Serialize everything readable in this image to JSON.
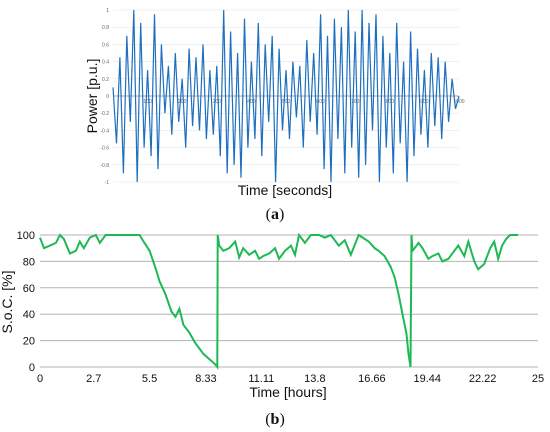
{
  "chart_data": [
    {
      "type": "line",
      "panel_label": "(a)",
      "caption_open": "(",
      "caption_letter": "a",
      "caption_close": ")",
      "xlabel": "Time [seconds]",
      "ylabel": "Power [p.u.]",
      "xlim": [
        0,
        1000
      ],
      "ylim": [
        -1,
        1
      ],
      "x_ticks": [
        "100",
        "200",
        "300",
        "400",
        "500",
        "600",
        "700",
        "800",
        "900",
        "1000"
      ],
      "y_ticks": [
        "1",
        "0.8",
        "0.6",
        "0.4",
        "0.2",
        "0",
        "-0.2",
        "-0.4",
        "-0.6",
        "-0.8",
        "-1"
      ],
      "line_color": "#1f6fbf",
      "x": [
        0,
        10,
        20,
        30,
        40,
        50,
        60,
        70,
        80,
        90,
        100,
        110,
        120,
        130,
        140,
        150,
        160,
        170,
        180,
        190,
        200,
        210,
        220,
        230,
        240,
        250,
        260,
        270,
        280,
        290,
        300,
        310,
        320,
        330,
        340,
        350,
        360,
        370,
        380,
        390,
        400,
        410,
        420,
        430,
        440,
        450,
        460,
        470,
        480,
        490,
        500,
        510,
        520,
        530,
        540,
        550,
        560,
        570,
        580,
        590,
        600,
        610,
        620,
        630,
        640,
        650,
        660,
        670,
        680,
        690,
        700,
        710,
        720,
        730,
        740,
        750,
        760,
        770,
        780,
        790,
        800,
        810,
        820,
        830,
        840,
        850,
        860,
        870,
        880,
        890,
        900,
        910,
        920,
        930,
        940,
        950,
        960,
        970,
        980,
        990,
        1000
      ],
      "y": [
        0.1,
        -0.55,
        0.45,
        -0.9,
        0.7,
        -0.3,
        1.0,
        -1.0,
        0.85,
        -0.6,
        0.3,
        -0.7,
        0.95,
        -0.85,
        0.6,
        -0.2,
        0.35,
        -0.45,
        0.5,
        -0.3,
        0.2,
        -0.6,
        0.55,
        -0.35,
        0.45,
        -0.4,
        0.6,
        -0.5,
        0.3,
        -0.45,
        0.35,
        -0.7,
        1.0,
        -0.9,
        0.75,
        -0.8,
        0.5,
        -0.95,
        0.9,
        -0.6,
        0.4,
        -0.5,
        0.85,
        -0.7,
        0.6,
        -0.3,
        0.7,
        -1.0,
        0.55,
        -0.4,
        0.3,
        -0.5,
        0.4,
        -0.25,
        0.35,
        -0.6,
        0.65,
        -0.3,
        0.5,
        -0.45,
        0.95,
        -0.85,
        0.7,
        -1.0,
        0.9,
        -0.5,
        0.8,
        -0.9,
        1.0,
        -0.6,
        0.75,
        -0.95,
        1.0,
        -0.8,
        0.85,
        -0.4,
        0.95,
        -1.0,
        0.7,
        -0.6,
        0.5,
        -0.9,
        0.85,
        -0.55,
        0.4,
        -1.0,
        0.75,
        -0.7,
        0.55,
        -0.45,
        0.3,
        -0.6,
        0.5,
        -0.35,
        0.45,
        -0.5,
        0.4,
        -0.3,
        0.2,
        -0.15,
        0.0
      ]
    },
    {
      "type": "line",
      "panel_label": "(b)",
      "caption_open": "(",
      "caption_letter": "b",
      "caption_close": ")",
      "xlabel": "Time [hours]",
      "ylabel": "S.o.C. [%]",
      "xlim": [
        0,
        25
      ],
      "ylim": [
        0,
        100
      ],
      "x_tick_values": [
        0,
        2.7,
        5.5,
        8.33,
        11.11,
        13.8,
        16.66,
        19.44,
        22.22,
        25
      ],
      "x_ticks": [
        "0",
        "2.7",
        "5.5",
        "8.33",
        "11.11",
        "13.8",
        "16.66",
        "19.44",
        "22.22",
        "25"
      ],
      "y_tick_values": [
        0,
        20,
        40,
        60,
        80,
        100
      ],
      "y_ticks": [
        "0",
        "20",
        "40",
        "60",
        "80",
        "100"
      ],
      "grid": "horizontal",
      "line_color": "#1db954",
      "x": [
        0,
        0.2,
        0.5,
        0.8,
        1.0,
        1.2,
        1.5,
        1.8,
        2.0,
        2.2,
        2.5,
        2.8,
        3.0,
        3.3,
        3.6,
        4.0,
        4.5,
        5.0,
        5.2,
        5.5,
        5.8,
        6.0,
        6.3,
        6.6,
        6.8,
        7.0,
        7.2,
        7.5,
        7.8,
        8.0,
        8.2,
        8.5,
        8.8,
        8.9,
        8.92,
        9.0,
        9.2,
        9.5,
        9.8,
        10.0,
        10.2,
        10.5,
        10.8,
        11.0,
        11.2,
        11.5,
        11.8,
        12.0,
        12.3,
        12.6,
        12.8,
        13.0,
        13.3,
        13.6,
        14.0,
        14.3,
        14.6,
        15.0,
        15.3,
        15.6,
        16.0,
        16.2,
        16.5,
        16.8,
        17.0,
        17.3,
        17.6,
        17.8,
        18.0,
        18.2,
        18.4,
        18.5,
        18.6,
        18.65,
        18.7,
        18.9,
        19.0,
        19.2,
        19.5,
        19.7,
        20.0,
        20.2,
        20.5,
        20.8,
        21.0,
        21.3,
        21.5,
        21.8,
        22.0,
        22.3,
        22.6,
        22.8,
        23.0,
        23.2,
        23.4,
        23.6,
        24.0
      ],
      "y": [
        98,
        90,
        92,
        94,
        100,
        97,
        86,
        88,
        95,
        90,
        98,
        100,
        94,
        100,
        100,
        100,
        100,
        100,
        95,
        88,
        75,
        65,
        55,
        42,
        38,
        44,
        32,
        26,
        18,
        14,
        10,
        6,
        2,
        0,
        100,
        92,
        88,
        90,
        95,
        83,
        90,
        85,
        88,
        82,
        84,
        86,
        90,
        82,
        88,
        92,
        85,
        100,
        94,
        100,
        100,
        98,
        100,
        92,
        96,
        85,
        100,
        98,
        95,
        90,
        88,
        84,
        76,
        68,
        55,
        40,
        25,
        10,
        0,
        100,
        88,
        92,
        94,
        90,
        82,
        84,
        86,
        80,
        82,
        88,
        92,
        84,
        95,
        80,
        74,
        78,
        90,
        95,
        82,
        92,
        97,
        100,
        100
      ]
    }
  ]
}
